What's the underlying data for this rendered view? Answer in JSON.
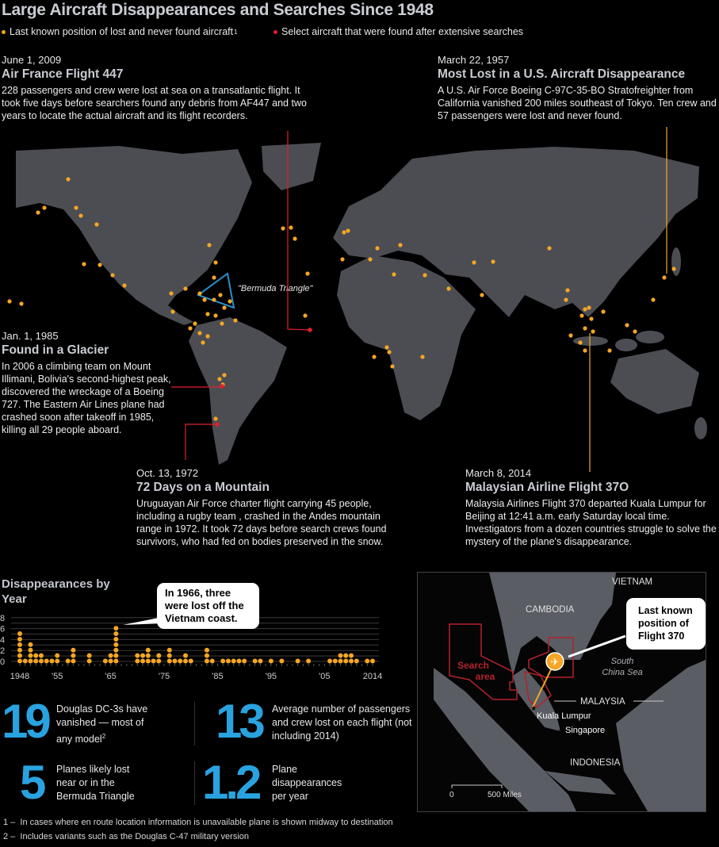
{
  "title": "Large Aircraft Disappearances and Searches Since 1948",
  "legend": {
    "lost": {
      "label": "Last known position of lost and never found aircraft",
      "footnote_mark": "1",
      "color": "#f5a623"
    },
    "found": {
      "label": "Select aircraft that were found after extensive searches",
      "color": "#e0202a"
    }
  },
  "stories": {
    "af447": {
      "date": "June 1, 2009",
      "headline": "Air France Flight 447",
      "body": "228 passengers and crew were lost at sea on a transatlantic flight. It took five days before searchers found any debris from AF447 and two years to locate the actual aircraft and its flight recorders."
    },
    "us1957": {
      "date": "March 22, 1957",
      "headline": "Most Lost in a U.S. Aircraft Disappearance",
      "body": "A U.S. Air Force Boeing C-97C-35-BO Stratofreighter from California vanished 200 miles southeast of Tokyo. Ten crew and 57 passengers were lost and never found."
    },
    "glacier": {
      "date": "Jan.  1, 1985",
      "headline": "Found in a Glacier",
      "body": "In 2006 a climbing team on Mount Illimani, Bolivia's second-highest peak, discovered the wreckage of a Boeing 727. The Eastern Air Lines plane had crashed soon after takeoff in 1985, killing all 29 people aboard."
    },
    "andes": {
      "date": "Oct.  13, 1972",
      "headline": "72 Days on a Mountain",
      "body": "Uruguayan Air Force charter flight carrying 45 people, including a rugby team , crashed in the Andes mountain range in 1972. It took 72 days before search crews found survivors, who had fed on bodies preserved in the snow."
    },
    "mh370": {
      "date": "March 8, 2014",
      "headline": "Malaysian Airline Flight 37O",
      "body": "Malaysia Airlines Flight 370 departed Kuala Lumpur for Beijing at 12:41 a.m. early Saturday local time. Investigators from a dozen countries struggle to solve the mystery of the plane's disappearance."
    }
  },
  "map": {
    "bermuda_label": "\"Bermuda Triangle\"",
    "land_color": "#4b4d53",
    "triangle_color": "#2a8fc9"
  },
  "chart_data": {
    "type": "scatter",
    "title": "Disappearances by Year",
    "subtype": "dot-stack",
    "ylim": [
      0,
      8
    ],
    "yticks": [
      "0",
      "2",
      "4",
      "6",
      "8"
    ],
    "xlim": [
      1948,
      2014
    ],
    "xticks": [
      "1948",
      "'55",
      "'65",
      "'75",
      "'85",
      "'95",
      "'05",
      "2014"
    ],
    "grid": true,
    "color": "#f5a623",
    "values": [
      {
        "year": 1948,
        "count": 6
      },
      {
        "year": 1949,
        "count": 1
      },
      {
        "year": 1950,
        "count": 4
      },
      {
        "year": 1951,
        "count": 2
      },
      {
        "year": 1952,
        "count": 2
      },
      {
        "year": 1953,
        "count": 1
      },
      {
        "year": 1954,
        "count": 1
      },
      {
        "year": 1955,
        "count": 2
      },
      {
        "year": 1957,
        "count": 1
      },
      {
        "year": 1958,
        "count": 3
      },
      {
        "year": 1961,
        "count": 2
      },
      {
        "year": 1964,
        "count": 1
      },
      {
        "year": 1965,
        "count": 2
      },
      {
        "year": 1966,
        "count": 7
      },
      {
        "year": 1970,
        "count": 2
      },
      {
        "year": 1971,
        "count": 2
      },
      {
        "year": 1972,
        "count": 3
      },
      {
        "year": 1973,
        "count": 1
      },
      {
        "year": 1974,
        "count": 2
      },
      {
        "year": 1976,
        "count": 3
      },
      {
        "year": 1977,
        "count": 1
      },
      {
        "year": 1978,
        "count": 1
      },
      {
        "year": 1979,
        "count": 2
      },
      {
        "year": 1980,
        "count": 1
      },
      {
        "year": 1983,
        "count": 3
      },
      {
        "year": 1984,
        "count": 1
      },
      {
        "year": 1986,
        "count": 1
      },
      {
        "year": 1987,
        "count": 1
      },
      {
        "year": 1988,
        "count": 1
      },
      {
        "year": 1989,
        "count": 1
      },
      {
        "year": 1990,
        "count": 1
      },
      {
        "year": 1992,
        "count": 1
      },
      {
        "year": 1993,
        "count": 1
      },
      {
        "year": 1995,
        "count": 1
      },
      {
        "year": 1997,
        "count": 1
      },
      {
        "year": 2000,
        "count": 1
      },
      {
        "year": 2002,
        "count": 1
      },
      {
        "year": 2006,
        "count": 1
      },
      {
        "year": 2007,
        "count": 1
      },
      {
        "year": 2008,
        "count": 2
      },
      {
        "year": 2009,
        "count": 2
      },
      {
        "year": 2010,
        "count": 2
      },
      {
        "year": 2011,
        "count": 1
      },
      {
        "year": 2013,
        "count": 1
      },
      {
        "year": 2014,
        "count": 1
      }
    ],
    "annotation": "In 1966, three were lost off the Vietnam coast."
  },
  "stats": [
    {
      "number": "19",
      "text": "Douglas DC-3s have vanished — most of any model",
      "footnote_mark": "2"
    },
    {
      "number": "13",
      "text": "Average number of passengers and crew lost on each flight (not including 2014)"
    },
    {
      "number": "5",
      "text": "Planes likely lost near or in the Bermuda Triangle"
    },
    {
      "number": "1.2",
      "text": "Plane disappearances per year"
    }
  ],
  "inset": {
    "labels": {
      "vietnam": "VIETNAM",
      "cambodia": "CAMBODIA",
      "malaysia": "MALAYSIA",
      "indonesia": "INDONESIA",
      "sea": "South China Sea",
      "search": "Search area",
      "kl": "Kuala Lumpur",
      "singapore": "Singapore"
    },
    "callout": "Last known position of Flight 370",
    "scale": {
      "zero": "0",
      "label": "500 Miles"
    },
    "search_color": "#b3222c",
    "plane_icon": "plane-icon"
  },
  "footnotes": [
    {
      "mark": "1 –",
      "text": "In cases where en route location information is unavailable plane is shown midway to destination"
    },
    {
      "mark": "2 –",
      "text": "Includes variants such as the Douglas C-47 military version"
    }
  ]
}
